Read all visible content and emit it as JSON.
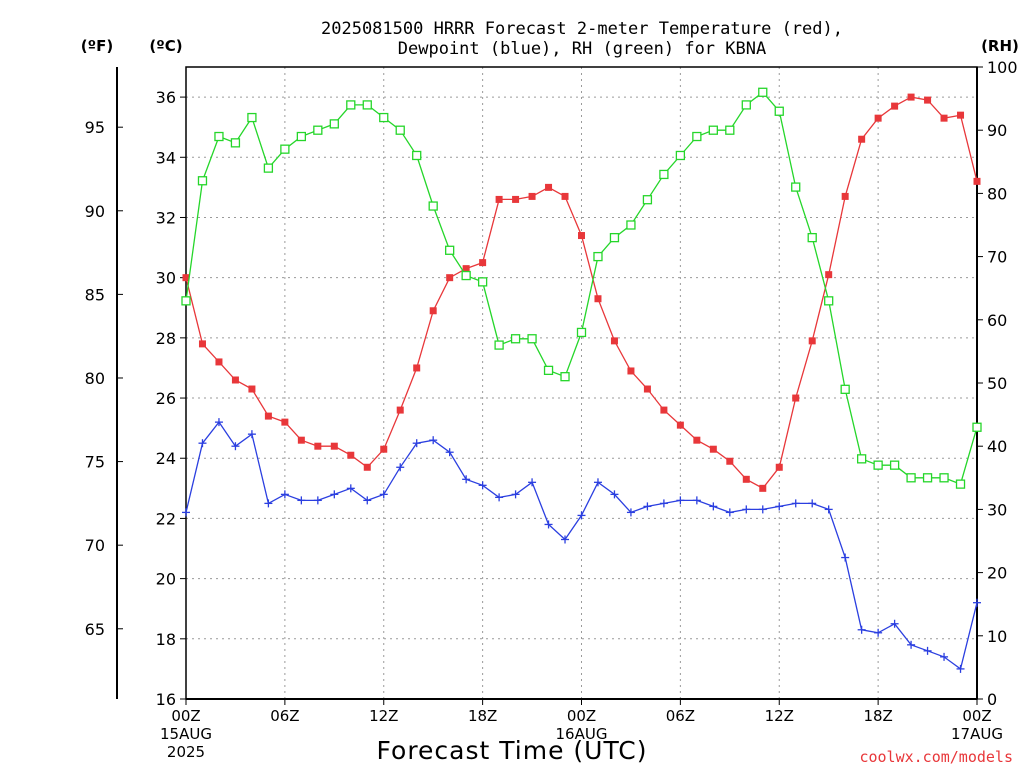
{
  "chart_data": {
    "type": "line",
    "title_line1": "2025081500 HRRR Forecast 2-meter Temperature (red),",
    "title_line2": "Dewpoint (blue), RH (green) for KBNA",
    "xlabel": "Forecast Time (UTC)",
    "credit": "coolwx.com/models",
    "left_outer_unit": "(ºF)",
    "left_inner_unit": "(ºC)",
    "right_unit": "(RH)",
    "x_ticks": [
      {
        "hour": 0,
        "label": "00Z",
        "sub1": "15AUG",
        "sub2": "2025"
      },
      {
        "hour": 6,
        "label": "06Z"
      },
      {
        "hour": 12,
        "label": "12Z"
      },
      {
        "hour": 18,
        "label": "18Z"
      },
      {
        "hour": 24,
        "label": "00Z",
        "sub1": "16AUG"
      },
      {
        "hour": 30,
        "label": "06Z"
      },
      {
        "hour": 36,
        "label": "12Z"
      },
      {
        "hour": 42,
        "label": "18Z"
      },
      {
        "hour": 48,
        "label": "00Z",
        "sub1": "17AUG"
      }
    ],
    "xlim": [
      0,
      48
    ],
    "ylim_c": [
      16,
      37
    ],
    "ylim_rh": [
      0,
      100
    ],
    "celsius_ticks": [
      "16",
      "18",
      "20",
      "22",
      "24",
      "26",
      "28",
      "30",
      "32",
      "34",
      "36"
    ],
    "fahrenheit_ticks": [
      "65",
      "70",
      "75",
      "80",
      "85",
      "90",
      "95"
    ],
    "rh_ticks": [
      "0",
      "10",
      "20",
      "30",
      "40",
      "50",
      "60",
      "70",
      "80",
      "90",
      "100"
    ],
    "grid": true,
    "colors": {
      "temperature": "#e8373a",
      "dewpoint": "#2b3fe0",
      "rh": "#25d62a"
    },
    "series": [
      {
        "name": "Temperature",
        "units": "C",
        "values": [
          30.0,
          27.8,
          27.2,
          26.6,
          26.3,
          25.4,
          25.2,
          24.6,
          24.4,
          24.4,
          24.1,
          23.7,
          24.3,
          25.6,
          27.0,
          28.9,
          30.0,
          30.3,
          30.5,
          32.6,
          32.6,
          32.7,
          33.0,
          32.7,
          31.4,
          29.3,
          27.9,
          26.9,
          26.3,
          25.6,
          25.1,
          24.6,
          24.3,
          23.9,
          23.3,
          23.0,
          23.7,
          26.0,
          27.9,
          30.1,
          32.7,
          34.6,
          35.3,
          35.7,
          36.0,
          35.9,
          35.3,
          35.4,
          33.2
        ]
      },
      {
        "name": "Dewpoint",
        "units": "C",
        "values": [
          22.2,
          24.5,
          25.2,
          24.4,
          24.8,
          22.5,
          22.8,
          22.6,
          22.6,
          22.8,
          23.0,
          22.6,
          22.8,
          23.7,
          24.5,
          24.6,
          24.2,
          23.3,
          23.1,
          22.7,
          22.8,
          23.2,
          21.8,
          21.3,
          22.1,
          23.2,
          22.8,
          22.2,
          22.4,
          22.5,
          22.6,
          22.6,
          22.4,
          22.2,
          22.3,
          22.3,
          22.4,
          22.5,
          22.5,
          22.3,
          20.7,
          18.3,
          18.2,
          18.5,
          17.8,
          17.6,
          17.4,
          17.0,
          19.2
        ]
      },
      {
        "name": "RH",
        "units": "%",
        "values": [
          63,
          82,
          89,
          88,
          92,
          84,
          87,
          89,
          90,
          91,
          94,
          94,
          92,
          90,
          86,
          78,
          71,
          67,
          66,
          56,
          57,
          57,
          52,
          51,
          58,
          70,
          73,
          75,
          79,
          83,
          86,
          89,
          90,
          90,
          94,
          96,
          93,
          81,
          73,
          63,
          49,
          38,
          37,
          37,
          35,
          35,
          35,
          34,
          43
        ]
      }
    ]
  }
}
